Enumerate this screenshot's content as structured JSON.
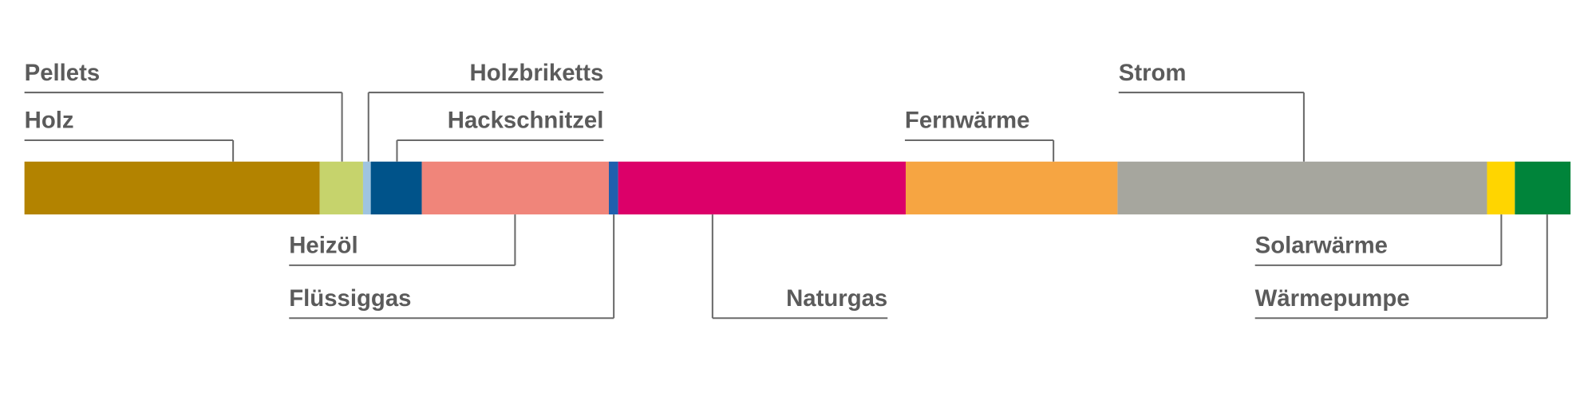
{
  "chart_data": {
    "type": "stacked_bar",
    "categories": [
      "Holz",
      "Pellets",
      "Holzbriketts",
      "Hackschnitzel",
      "Heizöl",
      "Flüssiggas",
      "Naturgas",
      "Fernwärme",
      "Strom",
      "Solarwärme",
      "Wärmepumpe"
    ],
    "values": [
      19.1,
      2.8,
      0.5,
      3.3,
      12.1,
      0.6,
      18.6,
      13.7,
      23.9,
      1.8,
      3.6
    ],
    "colors": [
      "#b38300",
      "#c6d36c",
      "#9fc4e0",
      "#00538a",
      "#f0857a",
      "#1f5fae",
      "#dc0069",
      "#f6a542",
      "#a6a69e",
      "#ffd500",
      "#00843a"
    ],
    "xlim": [
      0,
      100
    ]
  }
}
